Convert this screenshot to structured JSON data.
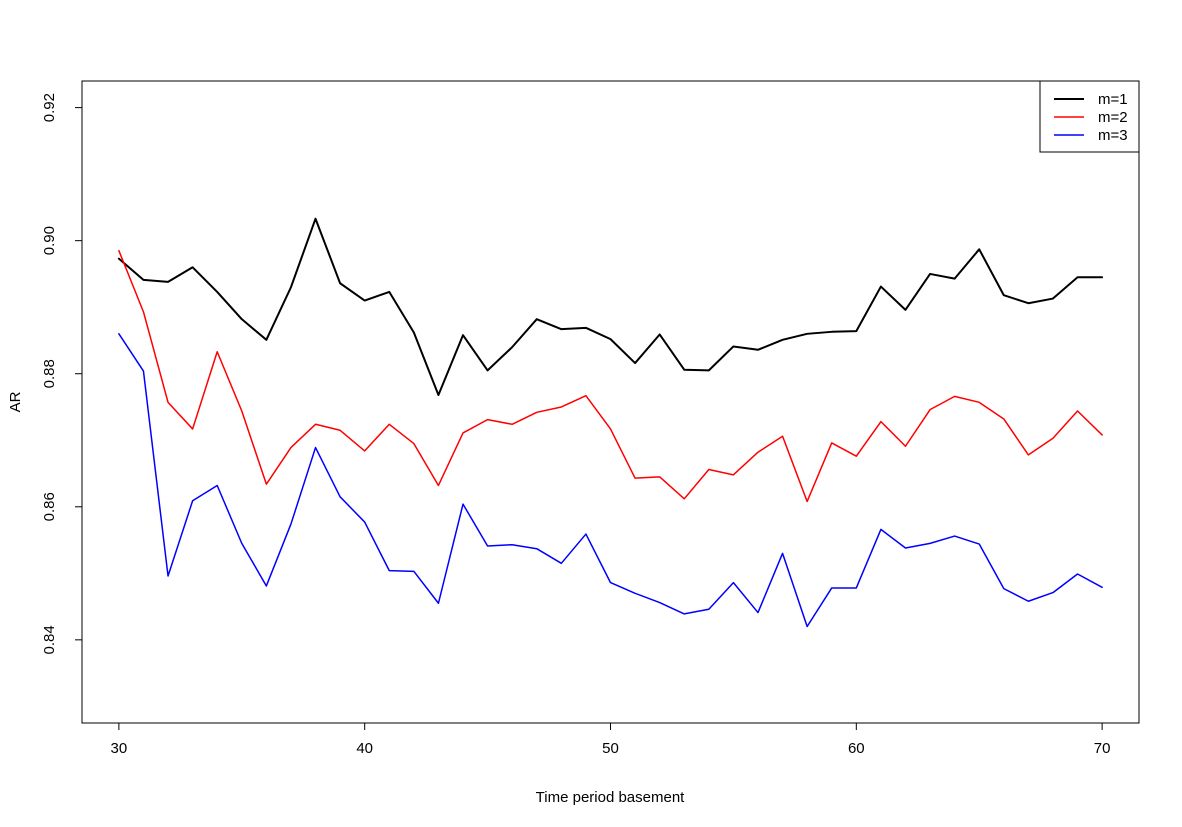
{
  "chart_data": {
    "type": "line",
    "title": "",
    "xlabel": "Time period basement",
    "ylabel": "AR",
    "xlim": [
      28.5,
      71.5
    ],
    "ylim": [
      0.8275,
      0.924
    ],
    "xticks": [
      30,
      40,
      50,
      60,
      70
    ],
    "yticks": [
      0.84,
      0.86,
      0.88,
      0.9,
      0.92
    ],
    "xtick_labels": [
      "30",
      "40",
      "50",
      "60",
      "70"
    ],
    "ytick_labels": [
      "0.84",
      "0.86",
      "0.88",
      "0.90",
      "0.92"
    ],
    "grid": false,
    "legend_position": "top-right",
    "x": [
      30,
      31,
      32,
      33,
      34,
      35,
      36,
      37,
      38,
      39,
      40,
      41,
      42,
      43,
      44,
      45,
      46,
      47,
      48,
      49,
      50,
      51,
      52,
      53,
      54,
      55,
      56,
      57,
      58,
      59,
      60,
      61,
      62,
      63,
      64,
      65,
      66,
      67,
      68,
      69,
      70
    ],
    "series": [
      {
        "name": "m=1",
        "color": "#000000",
        "values": [
          0.8973,
          0.8941,
          0.8938,
          0.896,
          0.8923,
          0.8882,
          0.8851,
          0.893,
          0.9033,
          0.8936,
          0.891,
          0.8923,
          0.8862,
          0.8768,
          0.8858,
          0.8805,
          0.884,
          0.8882,
          0.8867,
          0.8869,
          0.8852,
          0.8816,
          0.8859,
          0.8806,
          0.8805,
          0.8841,
          0.8836,
          0.8851,
          0.886,
          0.8863,
          0.8864,
          0.8931,
          0.8896,
          0.895,
          0.8943,
          0.8987,
          0.8918,
          0.8906,
          0.8913,
          0.8945,
          0.8945
        ]
      },
      {
        "name": "m=2",
        "color": "#ff0000",
        "values": [
          0.8985,
          0.8893,
          0.8757,
          0.8717,
          0.8833,
          0.8744,
          0.8634,
          0.8689,
          0.8724,
          0.8715,
          0.8684,
          0.8724,
          0.8695,
          0.8632,
          0.8711,
          0.8731,
          0.8724,
          0.8742,
          0.875,
          0.8767,
          0.8717,
          0.8643,
          0.8645,
          0.8612,
          0.8656,
          0.8648,
          0.8682,
          0.8706,
          0.8608,
          0.8696,
          0.8676,
          0.8728,
          0.8691,
          0.8746,
          0.8766,
          0.8757,
          0.8732,
          0.8678,
          0.8703,
          0.8744,
          0.8708
        ]
      },
      {
        "name": "m=3",
        "color": "#0000ff",
        "values": [
          0.886,
          0.8804,
          0.8496,
          0.8609,
          0.8632,
          0.8545,
          0.8481,
          0.8574,
          0.8689,
          0.8615,
          0.8577,
          0.8504,
          0.8503,
          0.8455,
          0.8604,
          0.8541,
          0.8543,
          0.8537,
          0.8515,
          0.8559,
          0.8486,
          0.847,
          0.8456,
          0.8439,
          0.8446,
          0.8486,
          0.8441,
          0.853,
          0.842,
          0.8478,
          0.8478,
          0.8566,
          0.8538,
          0.8545,
          0.8556,
          0.8544,
          0.8477,
          0.8458,
          0.8471,
          0.8499,
          0.8479
        ]
      }
    ]
  }
}
